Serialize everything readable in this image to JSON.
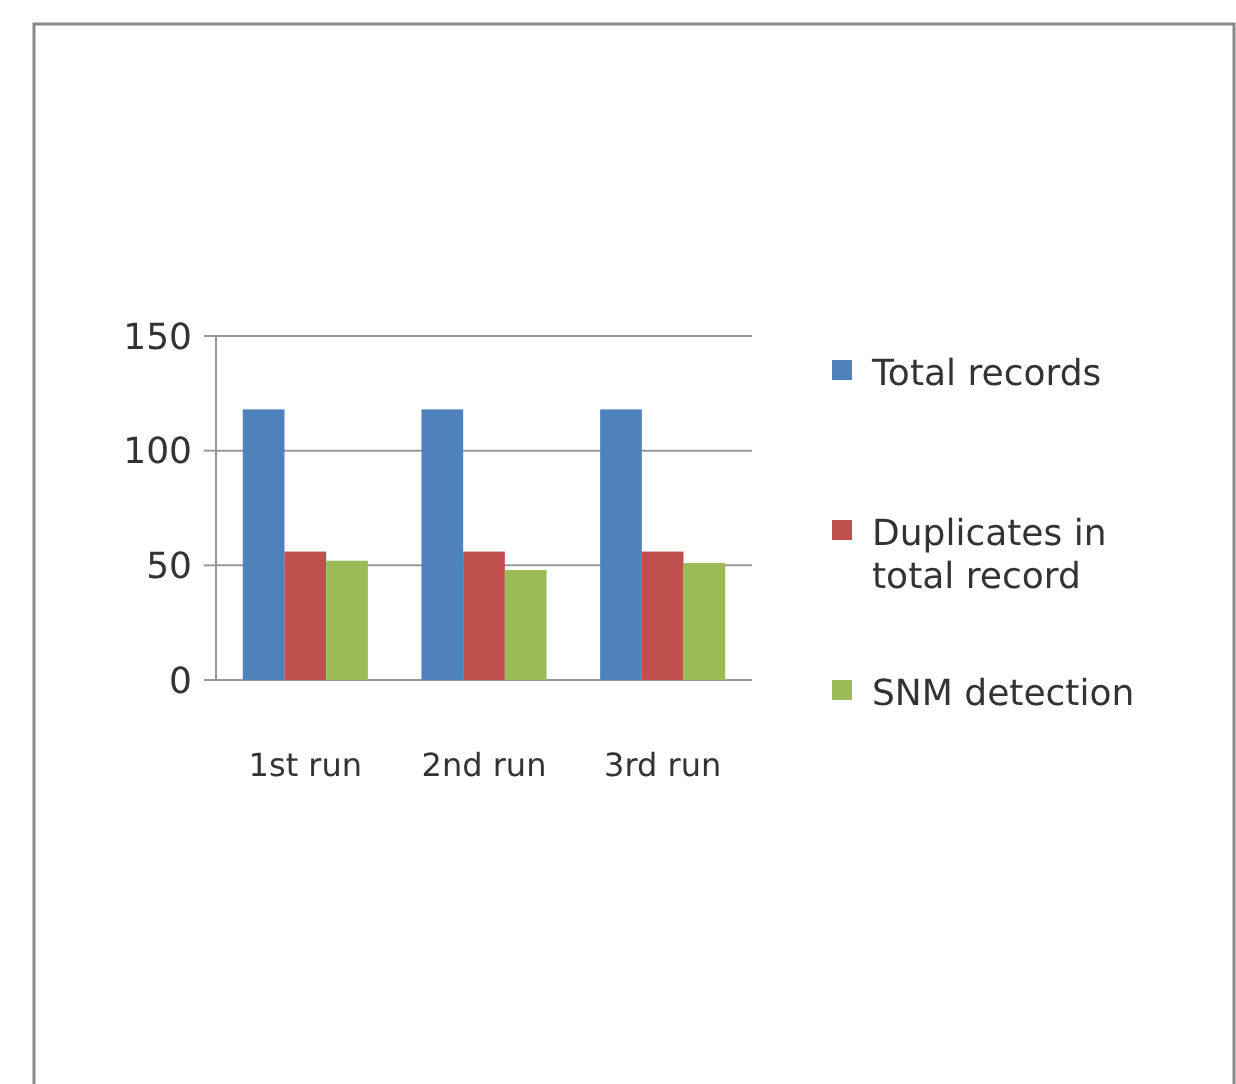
{
  "chart_data": {
    "type": "bar",
    "categories": [
      "1st run",
      "2nd run",
      "3rd run"
    ],
    "series": [
      {
        "name": "Total records",
        "color": "#4f81bd",
        "values": [
          118,
          118,
          118
        ]
      },
      {
        "name": "Duplicates in total record",
        "color": "#c0504d",
        "values": [
          56,
          56,
          56
        ]
      },
      {
        "name": "SNM detection",
        "color": "#9bbb59",
        "values": [
          52,
          48,
          51
        ]
      }
    ],
    "ylim": [
      0,
      150
    ],
    "yticks": [
      0,
      50,
      100,
      150
    ],
    "grid": "y",
    "legend": "right"
  }
}
